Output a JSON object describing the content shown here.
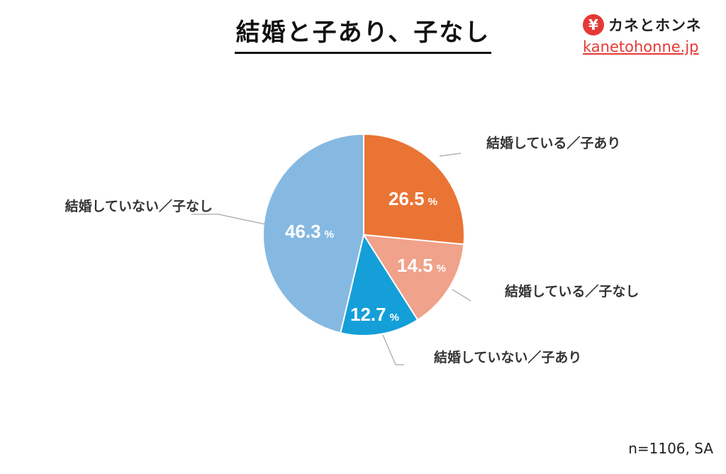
{
  "header": {
    "title": "結婚と子あり、子なし"
  },
  "logo": {
    "mark": "¥",
    "name": "カネとホンネ",
    "url": "kanetohonne.jp",
    "brand_color": "#e53935"
  },
  "chart_data": {
    "type": "pie",
    "title": "結婚と子あり、子なし",
    "unit": "%",
    "slices": [
      {
        "label": "結婚している／子あり",
        "value": 26.5,
        "value_text": "26.5",
        "color": "#ea7433"
      },
      {
        "label": "結婚している／子なし",
        "value": 14.5,
        "value_text": "14.5",
        "color": "#f0a28a"
      },
      {
        "label": "結婚していない／子あり",
        "value": 12.7,
        "value_text": "12.7",
        "color": "#149fd8"
      },
      {
        "label": "結婚していない／子なし",
        "value": 46.3,
        "value_text": "46.3",
        "color": "#86b9e1"
      }
    ]
  },
  "footnote": "n=1106, SA"
}
